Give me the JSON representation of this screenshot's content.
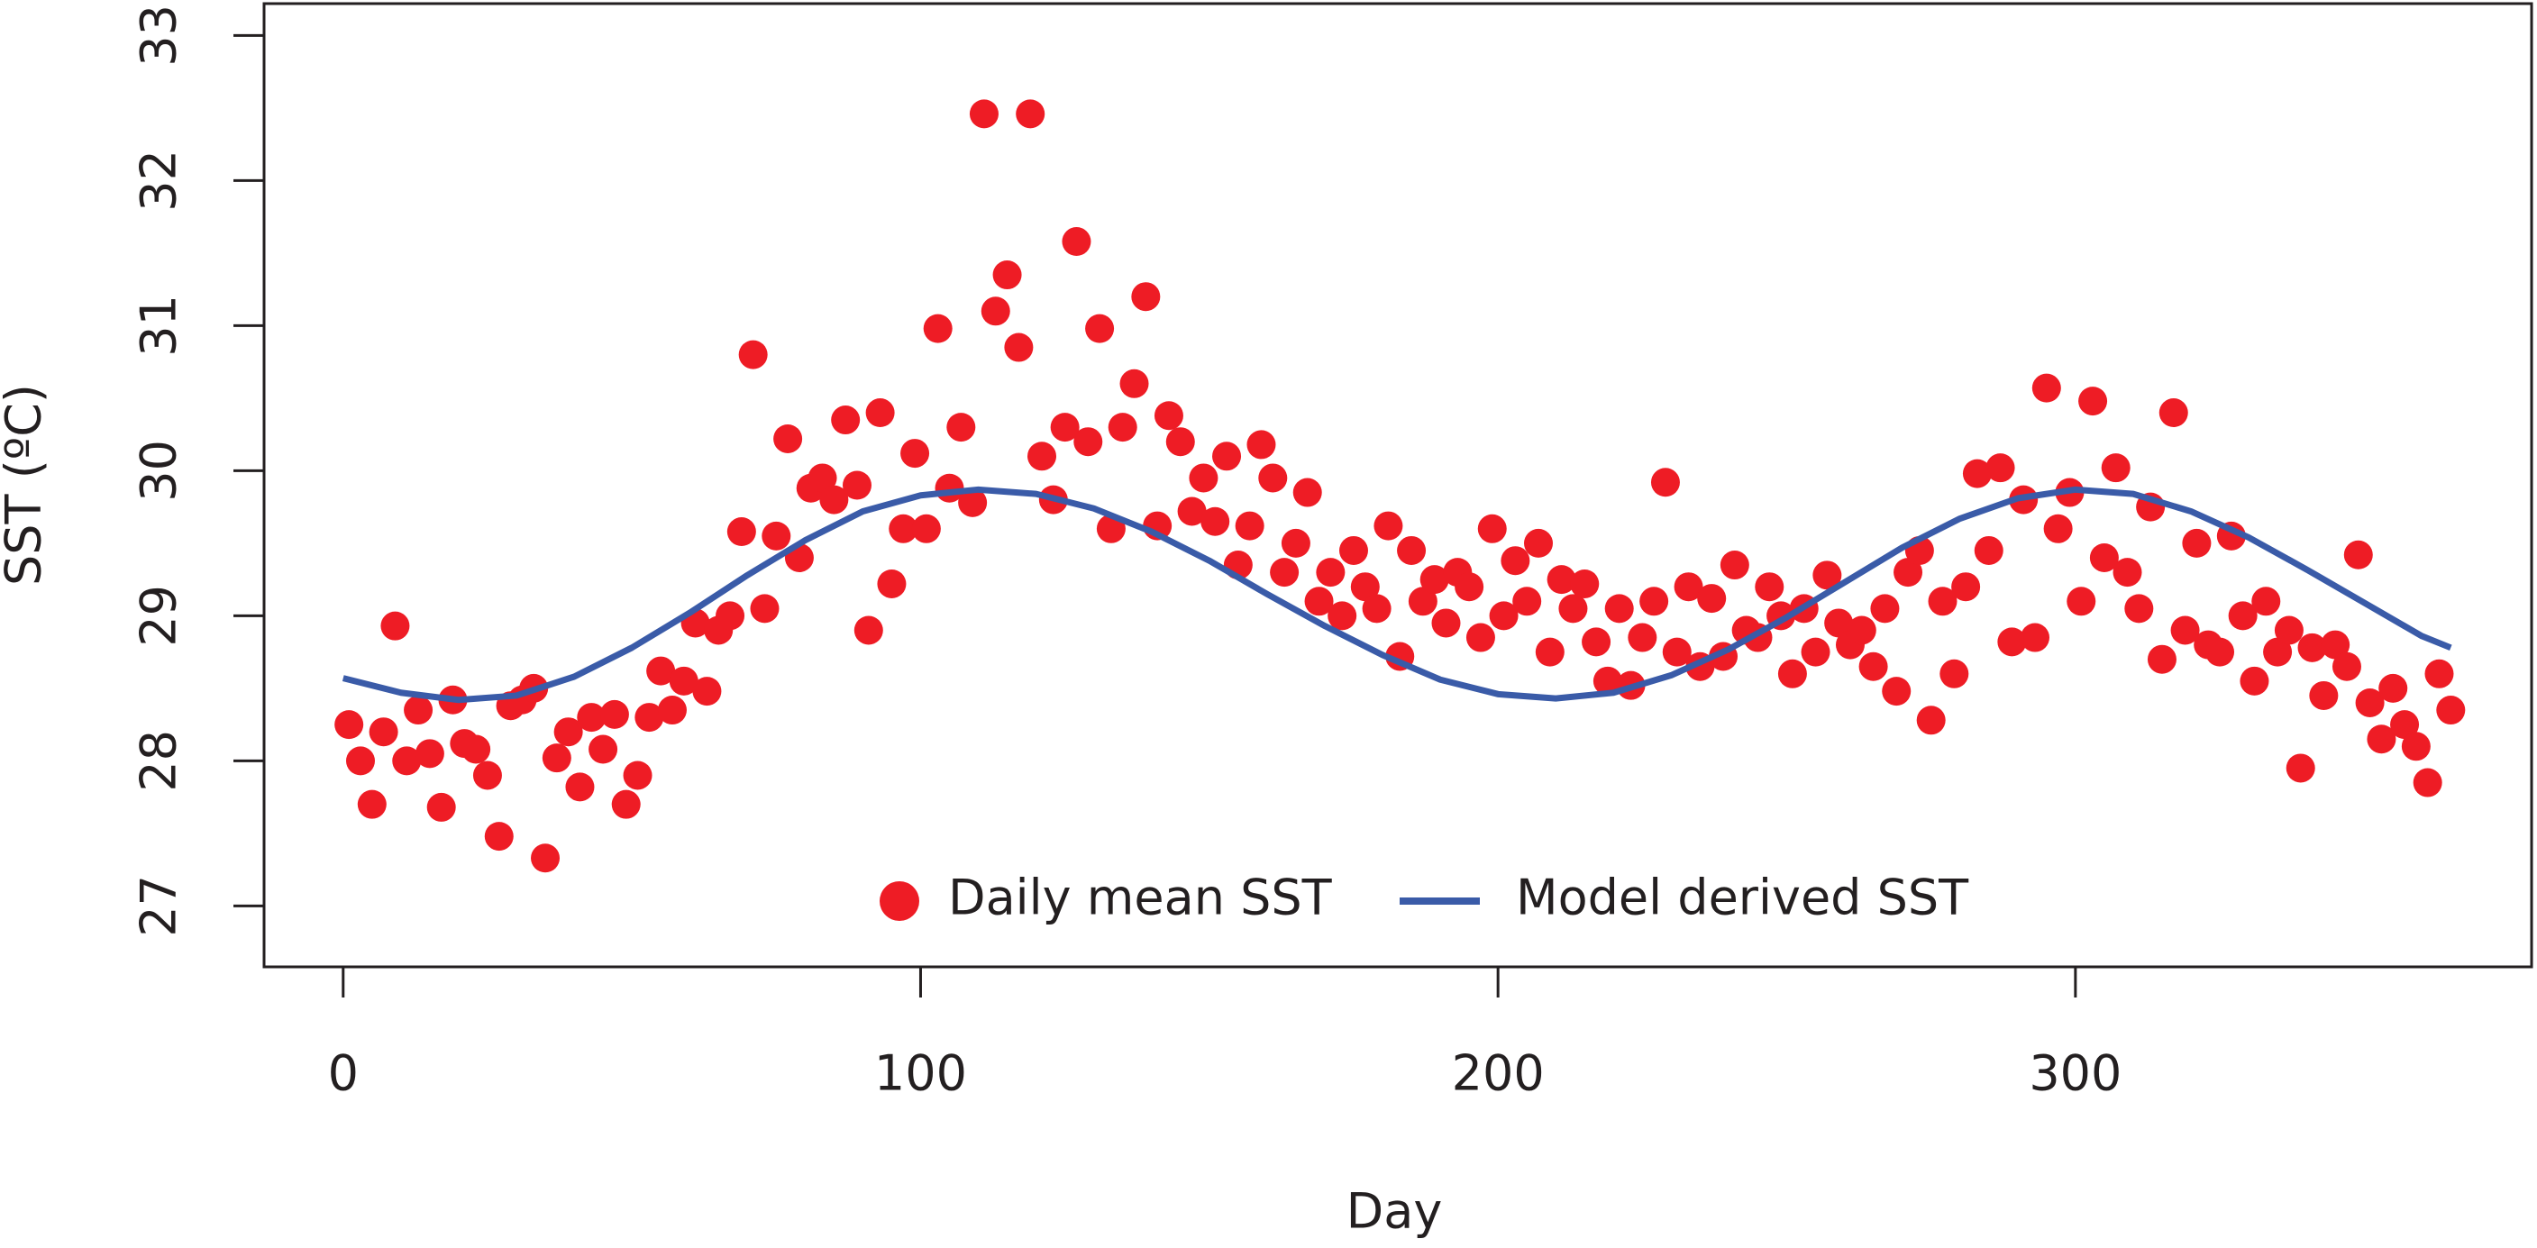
{
  "chart_data": {
    "type": "scatter",
    "x_label": "Day",
    "y_label": "SST (ºC)",
    "xlim": [
      -13.7,
      379
    ],
    "ylim": [
      26.58,
      33.22
    ],
    "xticks": [
      0,
      100,
      200,
      300
    ],
    "yticks": [
      27,
      28,
      29,
      30,
      31,
      32,
      33
    ],
    "legend": "bottom",
    "series": [
      {
        "name": "Daily mean SST",
        "type": "scatter",
        "color": "#ee1c25",
        "x": [
          1,
          3,
          5,
          7,
          9,
          11,
          13,
          15,
          17,
          19,
          21,
          23,
          25,
          27,
          29,
          31,
          33,
          35,
          37,
          39,
          41,
          43,
          45,
          47,
          49,
          51,
          53,
          55,
          57,
          59,
          61,
          63,
          65,
          67,
          69,
          71,
          73,
          75,
          77,
          79,
          81,
          83,
          85,
          87,
          89,
          91,
          93,
          95,
          97,
          99,
          101,
          103,
          105,
          107,
          109,
          111,
          113,
          115,
          117,
          119,
          121,
          123,
          125,
          127,
          129,
          131,
          133,
          135,
          137,
          139,
          141,
          143,
          145,
          147,
          149,
          151,
          153,
          155,
          157,
          159,
          161,
          163,
          165,
          167,
          169,
          171,
          173,
          175,
          177,
          179,
          181,
          183,
          185,
          187,
          189,
          191,
          193,
          195,
          197,
          199,
          201,
          203,
          205,
          207,
          209,
          211,
          213,
          215,
          217,
          219,
          221,
          223,
          225,
          227,
          229,
          231,
          233,
          235,
          237,
          239,
          241,
          243,
          245,
          247,
          249,
          251,
          253,
          255,
          257,
          259,
          261,
          263,
          265,
          267,
          269,
          271,
          273,
          275,
          277,
          279,
          281,
          283,
          285,
          287,
          289,
          291,
          293,
          295,
          297,
          299,
          301,
          303,
          305,
          307,
          309,
          311,
          313,
          315,
          317,
          319,
          321,
          323,
          325,
          327,
          329,
          331,
          333,
          335,
          337,
          339,
          341,
          343,
          345,
          347,
          349,
          351,
          353,
          355,
          357,
          359,
          361,
          363,
          365
        ],
        "values": [
          28.25,
          28.0,
          27.7,
          28.2,
          28.93,
          28.0,
          28.35,
          28.05,
          27.68,
          28.42,
          28.12,
          28.08,
          27.9,
          27.48,
          28.38,
          28.42,
          28.5,
          27.33,
          28.02,
          28.2,
          27.82,
          28.3,
          28.08,
          28.32,
          27.7,
          27.9,
          28.3,
          28.62,
          28.35,
          28.55,
          28.95,
          28.48,
          28.9,
          29.0,
          29.58,
          30.8,
          29.05,
          29.55,
          30.22,
          29.4,
          29.88,
          29.95,
          29.8,
          30.35,
          29.9,
          28.9,
          30.4,
          29.22,
          29.6,
          30.12,
          29.6,
          30.98,
          29.88,
          30.3,
          29.78,
          32.46,
          31.1,
          31.35,
          30.85,
          32.46,
          30.1,
          29.8,
          30.3,
          31.58,
          30.2,
          30.98,
          29.6,
          30.3,
          30.6,
          31.2,
          29.62,
          30.38,
          30.2,
          29.72,
          29.95,
          29.65,
          30.1,
          29.35,
          29.62,
          30.18,
          29.95,
          29.3,
          29.5,
          29.85,
          29.1,
          29.3,
          29.0,
          29.45,
          29.2,
          29.05,
          29.62,
          28.72,
          29.45,
          29.1,
          29.25,
          28.95,
          29.3,
          29.2,
          28.85,
          29.6,
          29.0,
          29.38,
          29.1,
          29.5,
          28.75,
          29.25,
          29.05,
          29.22,
          28.82,
          28.55,
          29.05,
          28.52,
          28.85,
          29.1,
          29.92,
          28.75,
          29.2,
          28.65,
          29.12,
          28.72,
          29.35,
          28.9,
          28.85,
          29.2,
          29.0,
          28.6,
          29.05,
          28.75,
          29.28,
          28.95,
          28.8,
          28.9,
          28.65,
          29.05,
          28.48,
          29.3,
          29.45,
          28.28,
          29.1,
          28.6,
          29.2,
          29.98,
          29.45,
          30.02,
          28.82,
          29.8,
          28.85,
          30.57,
          29.6,
          29.85,
          29.1,
          30.48,
          29.4,
          30.02,
          29.3,
          29.05,
          29.75,
          28.7,
          30.4,
          28.9,
          29.5,
          28.8,
          28.75,
          29.55,
          29.0,
          28.55,
          29.1,
          28.75,
          28.9,
          27.95,
          28.78,
          28.45,
          28.8,
          28.65,
          29.42,
          28.4,
          28.15,
          28.5,
          28.25,
          28.1,
          27.85,
          28.6,
          28.35
        ]
      },
      {
        "name": "Model derived SST",
        "type": "line",
        "color": "#3a5ba8",
        "x": [
          0,
          10,
          20,
          30,
          40,
          50,
          60,
          70,
          80,
          90,
          100,
          110,
          120,
          130,
          140,
          150,
          160,
          170,
          180,
          190,
          200,
          210,
          220,
          230,
          240,
          250,
          260,
          270,
          280,
          290,
          300,
          310,
          320,
          330,
          340,
          350,
          360,
          365
        ],
        "values": [
          28.57,
          28.47,
          28.42,
          28.45,
          28.58,
          28.78,
          29.02,
          29.28,
          29.52,
          29.72,
          29.83,
          29.87,
          29.84,
          29.74,
          29.58,
          29.38,
          29.15,
          28.93,
          28.73,
          28.56,
          28.46,
          28.43,
          28.47,
          28.59,
          28.77,
          28.99,
          29.23,
          29.47,
          29.67,
          29.81,
          29.87,
          29.84,
          29.72,
          29.54,
          29.32,
          29.09,
          28.86,
          28.78
        ]
      }
    ]
  }
}
